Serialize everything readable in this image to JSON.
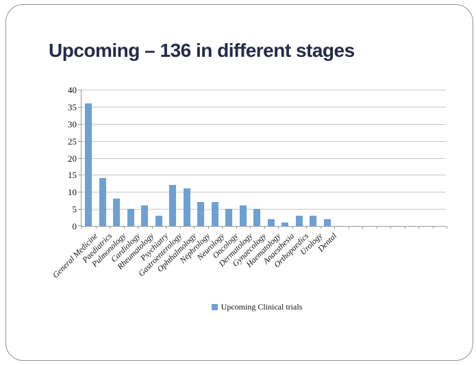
{
  "slide": {
    "title": "Upcoming – 136 in different stages"
  },
  "chart_data": {
    "type": "bar",
    "title": "Upcoming – 136 in different stages",
    "categories": [
      "General Medicine",
      "Paediatrics",
      "Pulmonology",
      "Cardiology",
      "Rheumatology",
      "Psychiatry",
      "Gastroenterology",
      "Ophthalmology",
      "Nephrology",
      "Neurology",
      "Oncology",
      "Dermatology",
      "Gynaecology",
      "Haematology",
      "Anaesthesia",
      "Orthopaedics",
      "Urology",
      "Dental"
    ],
    "values": [
      36,
      14,
      8,
      5,
      6,
      3,
      12,
      11,
      7,
      7,
      5,
      6,
      5,
      2,
      1,
      3,
      3,
      2
    ],
    "series_name": "Upcoming Clinical trials",
    "total": 136,
    "xlabel": "",
    "ylabel": "",
    "ylim": [
      0,
      40
    ],
    "y_tick_labels": [
      0,
      5,
      10,
      15,
      20,
      25,
      30,
      35,
      40
    ],
    "total_slots": 26,
    "grid": true,
    "legend_position": "bottom",
    "colors": {
      "bar": "#6da0d4",
      "gridline": "#c5c5c5",
      "axis": "#969696",
      "title": "#242b49",
      "frame_border": "#8f8f8f",
      "label_text": "#111111"
    }
  }
}
